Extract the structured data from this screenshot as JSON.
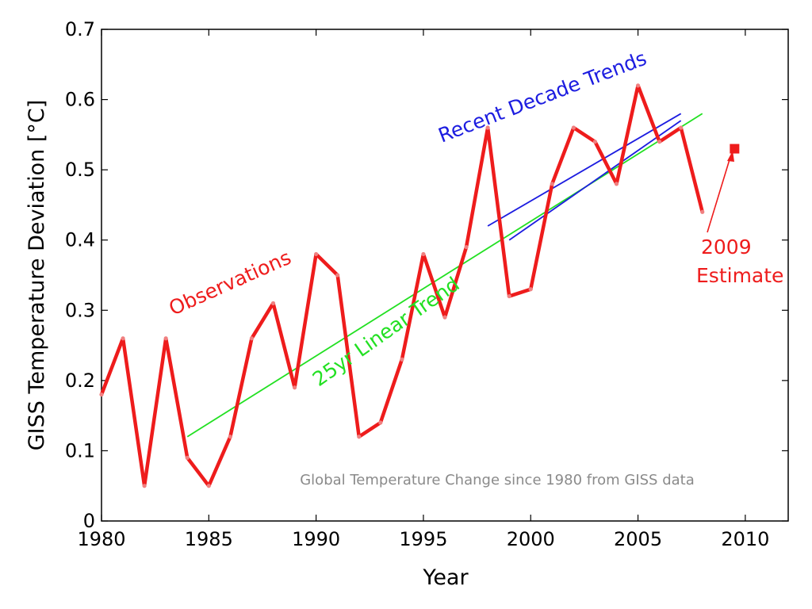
{
  "chart_data": {
    "type": "line",
    "xlabel": "Year",
    "ylabel": "GISS Temperature Deviation [°C]",
    "xlim": [
      1980,
      2012
    ],
    "ylim": [
      0,
      0.7
    ],
    "x_ticks": [
      "1980",
      "1985",
      "1990",
      "1995",
      "2000",
      "2005",
      "2010"
    ],
    "y_ticks": [
      "0",
      "0.1",
      "0.2",
      "0.3",
      "0.4",
      "0.5",
      "0.6",
      "0.7"
    ],
    "grid": false,
    "note": "Global Temperature Change since 1980 from GISS data",
    "series": [
      {
        "name": "Observations",
        "color": "#ee1c1c",
        "x": [
          1980,
          1981,
          1982,
          1983,
          1984,
          1985,
          1986,
          1987,
          1988,
          1989,
          1990,
          1991,
          1992,
          1993,
          1994,
          1995,
          1996,
          1997,
          1998,
          1999,
          2000,
          2001,
          2002,
          2003,
          2004,
          2005,
          2006,
          2007,
          2008
        ],
        "y": [
          0.18,
          0.26,
          0.05,
          0.26,
          0.09,
          0.05,
          0.12,
          0.26,
          0.31,
          0.19,
          0.38,
          0.35,
          0.12,
          0.14,
          0.23,
          0.38,
          0.29,
          0.39,
          0.56,
          0.32,
          0.33,
          0.48,
          0.56,
          0.54,
          0.48,
          0.62,
          0.54,
          0.56,
          0.44
        ]
      },
      {
        "name": "25yr Linear Trend",
        "color": "#22e022",
        "x": [
          1984,
          2008
        ],
        "y": [
          0.12,
          0.58
        ]
      },
      {
        "name": "Recent Decade Trends",
        "color": "#1c1ce0",
        "x": [
          1998,
          2007
        ],
        "y": [
          0.42,
          0.58
        ]
      },
      {
        "name": "Recent Decade Trends",
        "color": "#1c1ce0",
        "x": [
          1999,
          2007
        ],
        "y": [
          0.4,
          0.57
        ]
      },
      {
        "name": "2009 Estimate",
        "color": "#ee1c1c",
        "x": [
          2009.5
        ],
        "y": [
          0.53
        ]
      }
    ],
    "annotations": {
      "observations": "Observations",
      "linear_trend": "25yr Linear Trend",
      "decade_trends": "Recent Decade Trends",
      "estimate_year": "2009",
      "estimate_word": "Estimate"
    }
  }
}
